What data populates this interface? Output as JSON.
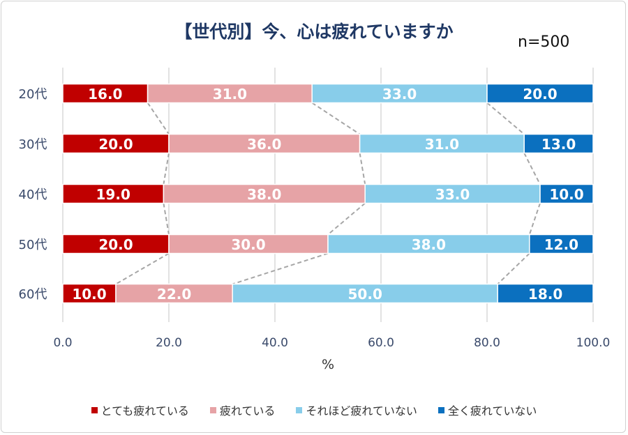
{
  "chart_data": {
    "type": "bar",
    "orientation": "horizontal",
    "stacked": true,
    "title": "【世代別】今、心は疲れていますか",
    "annotation": "n=500",
    "xlabel": "%",
    "ylabel": "",
    "xlim": [
      0,
      100
    ],
    "xticks": [
      "0.0",
      "20.0",
      "40.0",
      "60.0",
      "80.0",
      "100.0"
    ],
    "categories": [
      "20代",
      "30代",
      "40代",
      "50代",
      "60代"
    ],
    "series": [
      {
        "name": "とても疲れている",
        "color": "#C00000",
        "values": [
          16.0,
          20.0,
          19.0,
          20.0,
          10.0
        ]
      },
      {
        "name": "疲れている",
        "color": "#E6A3A6",
        "values": [
          31.0,
          36.0,
          38.0,
          30.0,
          22.0
        ]
      },
      {
        "name": "それほど疲れていない",
        "color": "#88CDEA",
        "values": [
          33.0,
          31.0,
          33.0,
          38.0,
          50.0
        ]
      },
      {
        "name": "全く疲れていない",
        "color": "#0B70BF",
        "values": [
          20.0,
          13.0,
          10.0,
          12.0,
          18.0
        ]
      }
    ],
    "grid": true,
    "legend": "bottom"
  }
}
